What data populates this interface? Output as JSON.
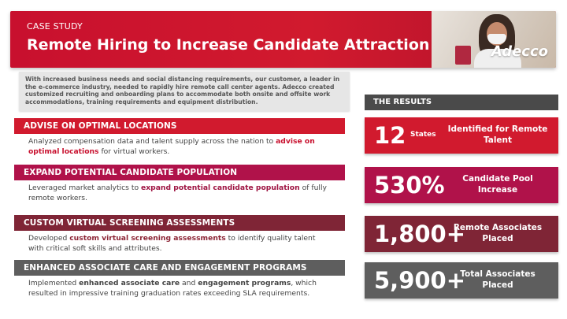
{
  "header": {
    "eyebrow": "CASE STUDY",
    "title": "Remote Hiring to Increase Candidate Attraction",
    "logo": "Adecco"
  },
  "intro": "With increased business needs and social distancing requirements, our customer, a leader in the e-commerce industry, needed to rapidly hire remote call center agents. Adecco created customized recruiting and onboarding plans to accommodate both onsite and offsite work accommodations, training requirements and equipment distribution.",
  "sections": [
    {
      "heading": "ADVISE ON OPTIMAL LOCATIONS",
      "color": "#d11a2e",
      "pre": "Analyzed compensation data and talent supply across the nation to ",
      "em1": "advise on optimal locations",
      "mid": " for virtual workers.",
      "em2": "",
      "post": ""
    },
    {
      "heading": "EXPAND POTENTIAL CANDIDATE POPULATION",
      "color": "#b0124a",
      "pre": "Leveraged market analytics to ",
      "em1": "expand potential candidate population",
      "mid": " of fully remote workers.",
      "em2": "",
      "post": ""
    },
    {
      "heading": "CUSTOM VIRTUAL SCREENING ASSESSMENTS",
      "color": "#7f2536",
      "pre": "Developed ",
      "em1": "custom virtual screening assessments",
      "mid": " to identify quality talent with critical soft skills and attributes.",
      "em2": "",
      "post": ""
    },
    {
      "heading": "ENHANCED ASSOCIATE CARE AND ENGAGEMENT PROGRAMS",
      "color": "#5e5e5e",
      "pre": "Implemented ",
      "em1": "enhanced associate care",
      "mid": " and ",
      "em2": "engagement programs",
      "post": ", which resulted in impressive training graduation rates exceeding SLA requirements."
    }
  ],
  "results": {
    "label": "THE RESULTS",
    "stats": [
      {
        "num": "12",
        "unit": "States",
        "desc": "Identified for Remote Talent",
        "color": "#d11a2e"
      },
      {
        "num": "530%",
        "unit": "",
        "desc": "Candidate Pool Increase",
        "color": "#b0124a"
      },
      {
        "num": "1,800+",
        "unit": "",
        "desc": "Remote Associates Placed",
        "color": "#7f2536"
      },
      {
        "num": "5,900+",
        "unit": "",
        "desc": "Total Associates Placed",
        "color": "#5e5e5e"
      }
    ]
  }
}
